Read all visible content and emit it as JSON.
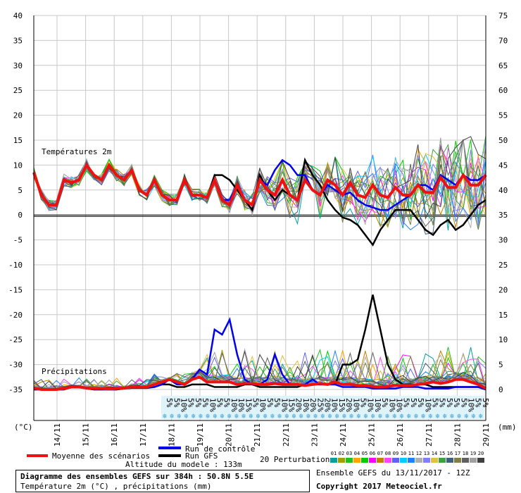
{
  "chart_data": {
    "type": "line",
    "title": "Diagramme des ensembles GEFS sur 384h : 50.8N 5.5E",
    "subtitle": "Température 2m (°C) , précipitations (mm)",
    "panels": {
      "temperature": {
        "label": "Températures 2m",
        "ylim": [
          -35,
          40
        ],
        "unit": "(°C)"
      },
      "precipitation": {
        "label": "Précipitations",
        "ylim": [
          0,
          75
        ],
        "unit": "(mm)"
      }
    },
    "y_ticks_left": [
      "40",
      "35",
      "30",
      "25",
      "20",
      "15",
      "10",
      "5",
      "0",
      "-5",
      "-10",
      "-15",
      "-20",
      "-25",
      "-30",
      "-35"
    ],
    "y_ticks_right": [
      "75",
      "70",
      "65",
      "60",
      "55",
      "50",
      "45",
      "40",
      "35",
      "30",
      "25",
      "20",
      "15",
      "10",
      "5",
      "0"
    ],
    "x_ticks": [
      "14/11",
      "15/11",
      "16/11",
      "17/11",
      "18/11",
      "19/11",
      "20/11",
      "21/11",
      "22/11",
      "23/11",
      "24/11",
      "25/11",
      "26/11",
      "27/11",
      "28/11",
      "29/11"
    ],
    "grid": true,
    "series": [
      {
        "name": "Moyenne des scénarios",
        "color": "#ee1111",
        "values": [
          8.5,
          4,
          2,
          2,
          7,
          6.5,
          7,
          10,
          8,
          7,
          10,
          8,
          7,
          9,
          5,
          4,
          7,
          4,
          3,
          3,
          7,
          4,
          4,
          3.5,
          7,
          3,
          2,
          6,
          3,
          2,
          7,
          5,
          4,
          7,
          4,
          3,
          7,
          5,
          4,
          7,
          6,
          4,
          6.5,
          4,
          3.5,
          6,
          4,
          3.5,
          5.5,
          4,
          4,
          6,
          4.5,
          4.5,
          7.5,
          5.5,
          5.5,
          8,
          6,
          6,
          8
        ]
      },
      {
        "name": "Run de contrôle",
        "color": "#0000ee",
        "values": [
          8.5,
          4,
          2,
          2,
          7,
          6.5,
          7,
          10,
          8,
          7,
          10,
          8,
          7,
          9,
          5,
          4,
          7,
          4,
          3,
          3,
          7,
          4,
          4,
          3.5,
          7,
          3,
          3,
          6,
          3,
          2,
          7,
          6,
          9,
          11,
          10,
          8,
          8,
          5,
          4,
          6,
          5,
          4,
          4.5,
          3,
          2,
          1.5,
          1,
          1,
          2,
          3,
          4,
          6,
          6,
          5,
          8,
          7,
          6,
          8,
          7,
          7,
          8
        ]
      },
      {
        "name": "Run GFS",
        "color": "#000000",
        "values": [
          8.5,
          4,
          2,
          2,
          7,
          6.5,
          7,
          10,
          8,
          7,
          10,
          8,
          7,
          9,
          5,
          4,
          7,
          4,
          3,
          3,
          7,
          4,
          4,
          3.5,
          8,
          8,
          7,
          5,
          3,
          1,
          8,
          5,
          3,
          5,
          4,
          3,
          11,
          8,
          6,
          3,
          1,
          -0.5,
          -1,
          -2,
          -4,
          -6,
          -3,
          -1,
          1,
          1,
          1,
          -1,
          -3,
          -4,
          -2,
          -1,
          -3,
          -2,
          0,
          2,
          3
        ]
      }
    ],
    "precip_series": [
      {
        "name": "Moyenne des scénarios",
        "color": "#ee1111",
        "values": [
          0.3,
          0,
          0,
          0,
          0.2,
          0.5,
          0.5,
          0.3,
          0.2,
          0.2,
          0.1,
          0.2,
          0.3,
          0.5,
          0.5,
          0.5,
          1,
          1.5,
          2,
          1.5,
          1,
          2,
          2.5,
          1.5,
          1.5,
          1.5,
          1.5,
          1,
          1.2,
          1.2,
          1,
          1,
          1.2,
          1,
          1,
          1,
          0.8,
          1,
          1.2,
          1,
          1.5,
          1,
          1,
          0.8,
          0.8,
          0.6,
          0.5,
          0.6,
          0.8,
          0.8,
          0.8,
          1,
          1.2,
          1.5,
          1.2,
          1.5,
          2,
          2,
          1.5,
          1,
          0.2
        ]
      },
      {
        "name": "Run de contrôle",
        "color": "#0000ee",
        "values": [
          0,
          0,
          0,
          0,
          0,
          0.5,
          0.5,
          0.2,
          0,
          0,
          0,
          0,
          0.2,
          0.5,
          0.5,
          0.5,
          0.5,
          1,
          2,
          1,
          1,
          2,
          4,
          3,
          12,
          11,
          14,
          7,
          2,
          1,
          1,
          2,
          7,
          3,
          1,
          1,
          1,
          2,
          1,
          1,
          1,
          0.5,
          0.5,
          0.5,
          0.5,
          0.2,
          0.2,
          0.2,
          0.2,
          0.5,
          0.5,
          0.5,
          0.2,
          0.2,
          0.2,
          0.2,
          0.5,
          0.5,
          0.5,
          0.5,
          0
        ]
      },
      {
        "name": "Run GFS",
        "color": "#000000",
        "values": [
          0,
          0,
          0,
          0,
          0,
          0.5,
          0.5,
          0.2,
          0,
          0,
          0,
          0,
          0.2,
          0.3,
          0.3,
          0.3,
          0.5,
          1,
          1,
          0.5,
          0.5,
          1,
          1,
          1,
          0.5,
          0.5,
          0.5,
          0.5,
          1,
          1,
          0.5,
          0.5,
          0.5,
          0.5,
          0.5,
          0.5,
          1,
          1,
          1,
          1,
          1,
          5,
          5,
          6,
          12,
          19,
          12,
          5,
          2,
          1,
          1,
          1,
          1,
          0.5,
          0.5,
          0.5,
          0.5,
          0.5,
          0.5,
          0.5,
          0
        ]
      }
    ]
  },
  "labels": {
    "temp_panel": "Températures 2m",
    "precip_panel": "Précipitations",
    "unit_left": "(°C)",
    "unit_right": "(mm)"
  },
  "legend": {
    "mean": "Moyenne des scénarios",
    "control": "Run de contrôle",
    "gfs": "Run GFS",
    "perturbations": "20 Perturbations",
    "altitude": "Altitude du modele : 133m",
    "pert_numbers": [
      "01",
      "02",
      "03",
      "04",
      "05",
      "06",
      "07",
      "08",
      "09",
      "10",
      "11",
      "12",
      "13",
      "14",
      "15",
      "16",
      "17",
      "18",
      "19",
      "20"
    ],
    "pert_colors": [
      "#00a0a0",
      "#a0a000",
      "#20c020",
      "#ffa500",
      "#00cc00",
      "#ff00ff",
      "#c08000",
      "#ff44ff",
      "#6060ff",
      "#00ccff",
      "#2080ff",
      "#b0b0b0",
      "#8080ff",
      "#e0c040",
      "#40a040",
      "#406080",
      "#808040",
      "#606060",
      "#a0a0a0",
      "#404040"
    ]
  },
  "snow": {
    "labels": [
      "5%",
      "5%",
      "10%",
      "5%",
      "5%",
      "5%",
      "10%",
      "5%",
      "5%",
      "10%",
      "10%",
      "15%",
      "5%",
      "10%",
      "5%",
      "5%",
      "10%",
      "15%",
      "20%",
      "10%",
      "20%",
      "25%",
      "20%",
      "10%",
      "15%",
      "20%",
      "10%",
      "5%",
      "10%",
      "10%",
      "5%",
      "10%",
      "10%",
      "5%",
      "5%",
      "5%",
      "10%",
      "5%",
      "5%",
      "5%",
      "5%",
      "5%",
      "10%",
      "5%",
      "5%"
    ]
  },
  "info": {
    "title": "Diagramme des ensembles GEFS sur 384h : 50.8N 5.5E",
    "subtitle": "Température 2m (°C) , précipitations (mm)",
    "ensemble": "Ensemble GEFS du 13/11/2017 - 12Z",
    "copyright": "Copyright 2017 Meteociel.fr"
  }
}
